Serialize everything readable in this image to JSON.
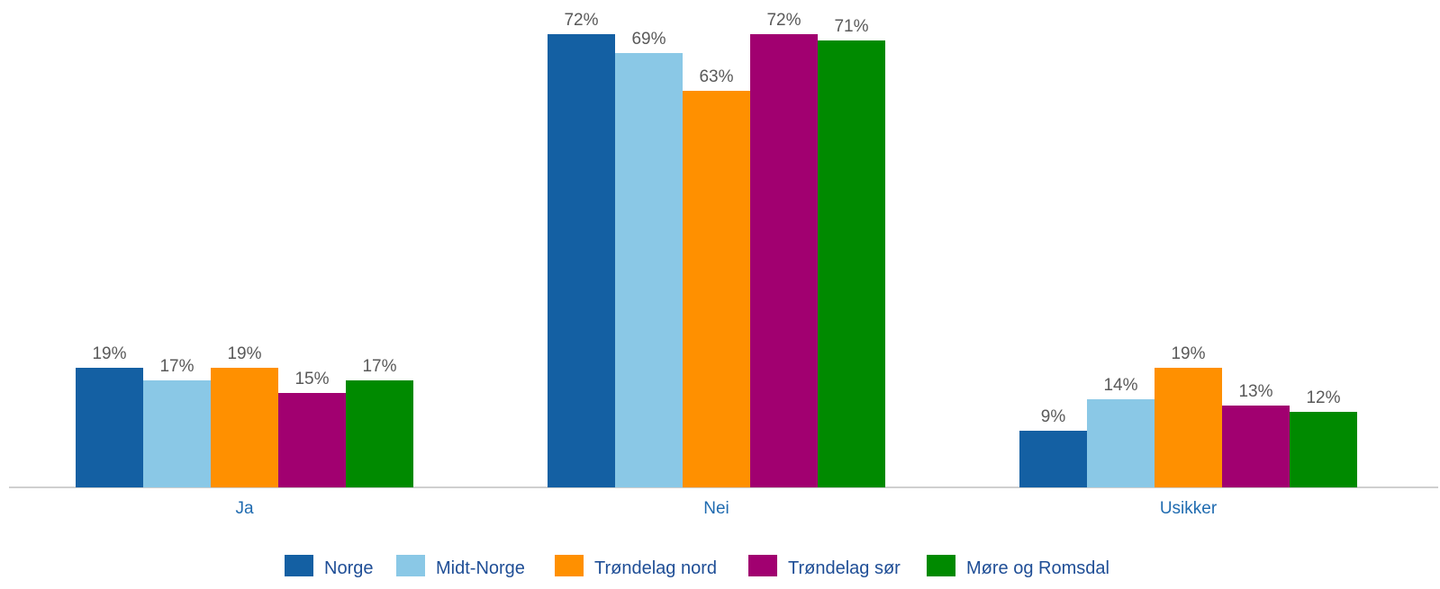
{
  "chart_data": {
    "type": "bar",
    "categories": [
      "Ja",
      "Nei",
      "Usikker"
    ],
    "series": [
      {
        "name": "Norge",
        "color": "#1460A3",
        "values": [
          19,
          72,
          9
        ],
        "labels": [
          "19%",
          "72%",
          "9%"
        ]
      },
      {
        "name": "Midt-Norge",
        "color": "#8AC8E6",
        "values": [
          17,
          69,
          14
        ],
        "labels": [
          "17%",
          "69%",
          "14%"
        ]
      },
      {
        "name": "Trøndelag nord",
        "color": "#FF9000",
        "values": [
          19,
          63,
          19
        ],
        "labels": [
          "19%",
          "63%",
          "19%"
        ]
      },
      {
        "name": "Trøndelag sør",
        "color": "#A10070",
        "values": [
          15,
          72,
          13
        ],
        "labels": [
          "15%",
          "72%",
          "13%"
        ]
      },
      {
        "name": "Møre og Romsdal",
        "color": "#008A00",
        "values": [
          17,
          71,
          12
        ],
        "labels": [
          "17%",
          "71%",
          "12%"
        ]
      }
    ],
    "value_unit": "%",
    "ylim": [
      0,
      72
    ],
    "grid": false,
    "legend_position": "bottom",
    "axis_color": "#BFBFBF",
    "category_label_color": "#1F6BB0",
    "legend_label_color": "#1F4E96"
  }
}
